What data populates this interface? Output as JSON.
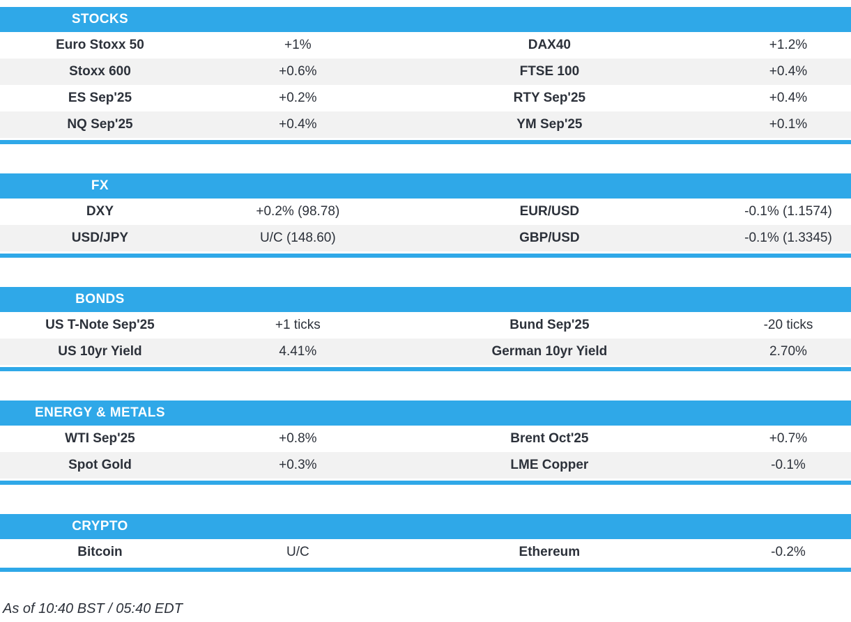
{
  "colors": {
    "accent_blue": "#2fa8e8",
    "row_alt_gray": "#f2f2f2",
    "text": "#2c313a",
    "header_text": "#ffffff"
  },
  "sections": [
    {
      "title": "STOCKS",
      "rows": [
        [
          "Euro Stoxx 50",
          "+1%",
          "DAX40",
          "+1.2%"
        ],
        [
          "Stoxx 600",
          "+0.6%",
          "FTSE 100",
          "+0.4%"
        ],
        [
          "ES Sep'25",
          "+0.2%",
          "RTY Sep'25",
          "+0.4%"
        ],
        [
          "NQ Sep'25",
          "+0.4%",
          "YM Sep'25",
          "+0.1%"
        ]
      ]
    },
    {
      "title": "FX",
      "rows": [
        [
          "DXY",
          "+0.2% (98.78)",
          "EUR/USD",
          "-0.1% (1.1574)"
        ],
        [
          "USD/JPY",
          "U/C (148.60)",
          "GBP/USD",
          "-0.1% (1.3345)"
        ]
      ]
    },
    {
      "title": "BONDS",
      "rows": [
        [
          "US T-Note Sep'25",
          "+1 ticks",
          "Bund Sep'25",
          "-20 ticks"
        ],
        [
          "US 10yr Yield",
          "4.41%",
          "German 10yr Yield",
          "2.70%"
        ]
      ]
    },
    {
      "title": "ENERGY & METALS",
      "rows": [
        [
          "WTI Sep'25",
          "+0.8%",
          "Brent Oct'25",
          "+0.7%"
        ],
        [
          "Spot Gold",
          "+0.3%",
          "LME Copper",
          "-0.1%"
        ]
      ]
    },
    {
      "title": "CRYPTO",
      "rows": [
        [
          "Bitcoin",
          "U/C",
          "Ethereum",
          "-0.2%"
        ]
      ]
    }
  ],
  "footer": {
    "as_of": "As of 10:40 BST / 05:40 EDT"
  }
}
